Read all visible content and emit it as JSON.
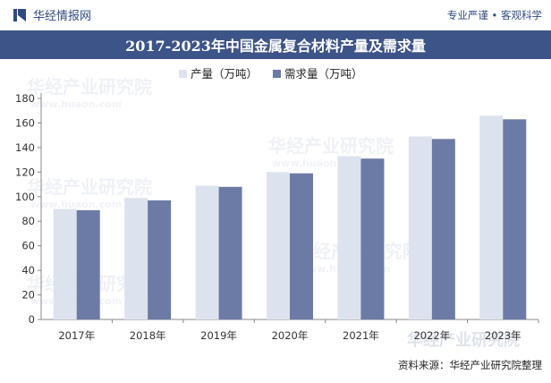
{
  "header": {
    "brand": "华经情报网",
    "tagline": "专业严谨 • 客观科学"
  },
  "source": "资料来源：华经产业研究院整理",
  "watermark": {
    "text": "华经产业研究院",
    "url": "www.huaon.com"
  },
  "colors": {
    "series1": "#dde3ee",
    "series2": "#6b7ba5",
    "header_band": "#3d5488",
    "brand": "#2f4a80"
  },
  "chart_data": {
    "type": "bar",
    "title": "2017-2023年中国金属复合材料产量及需求量",
    "categories": [
      "2017年",
      "2018年",
      "2019年",
      "2020年",
      "2021年",
      "2022年",
      "2023年"
    ],
    "series": [
      {
        "name": "产量（万吨）",
        "values": [
          90,
          99,
          109,
          120,
          133,
          149,
          166
        ]
      },
      {
        "name": "需求量（万吨）",
        "values": [
          89,
          97,
          108,
          119,
          131,
          147,
          163
        ]
      }
    ],
    "yticks": [
      0,
      20,
      40,
      60,
      80,
      100,
      120,
      140,
      160,
      180
    ],
    "ylim": [
      0,
      180
    ],
    "xlabel": "",
    "ylabel": "",
    "legend": "top-center",
    "grid": false
  }
}
